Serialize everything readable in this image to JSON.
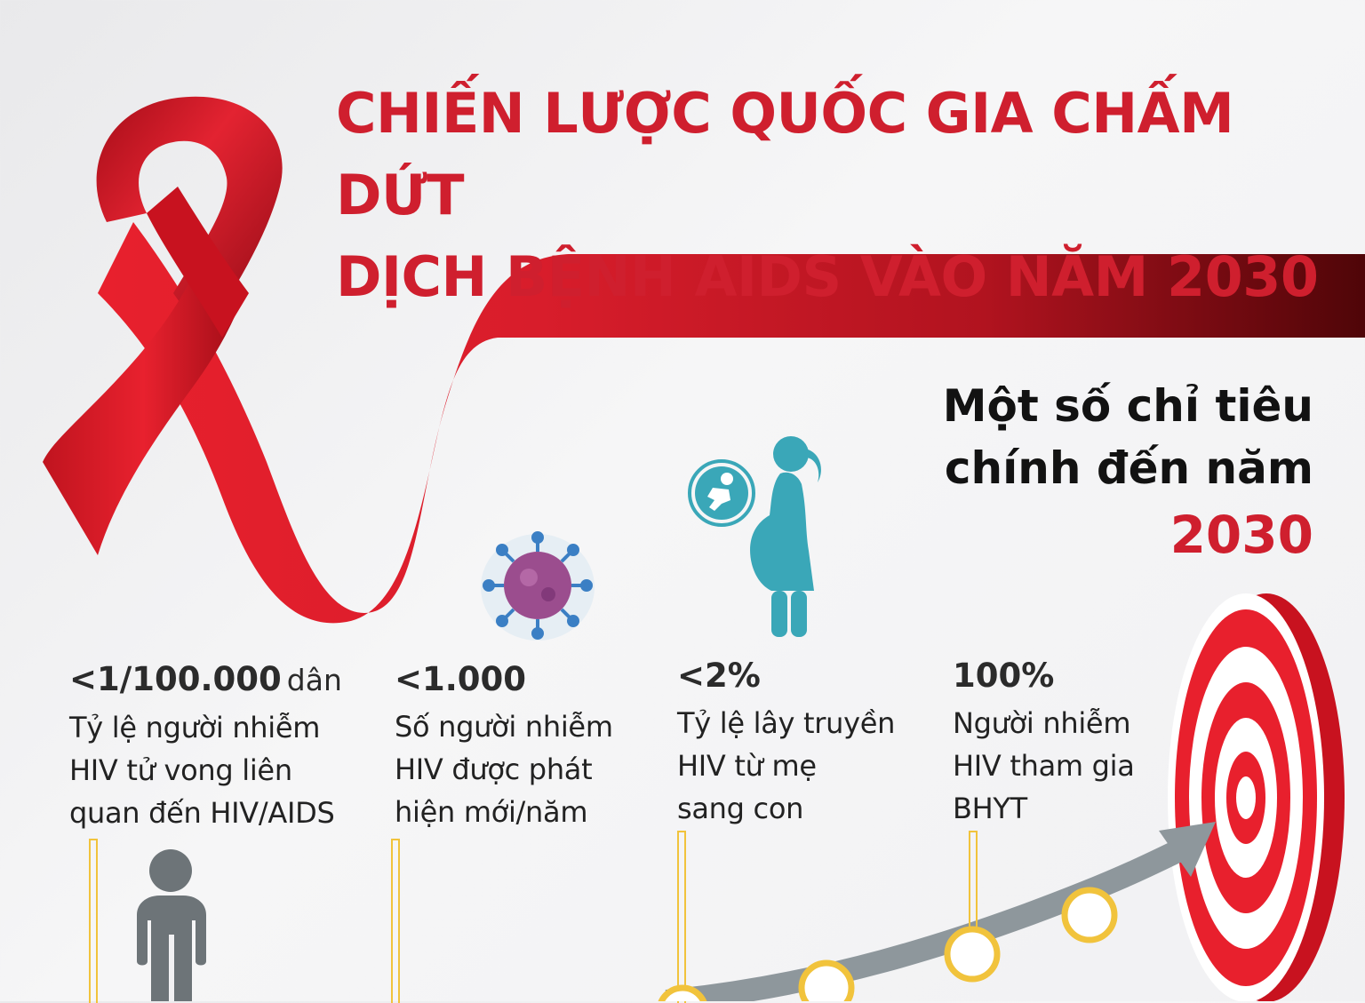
{
  "title": {
    "line1": "CHIẾN LƯỢC QUỐC GIA CHẤM DỨT",
    "line2": "DỊCH BỆNH AIDS VÀO NĂM 2030"
  },
  "subtitle": {
    "line1": "Một số chỉ tiêu",
    "line2": "chính đến năm",
    "year": "2030"
  },
  "stats": [
    {
      "value": "<1/100.000",
      "unit": "dân",
      "desc": [
        "Tỷ lệ người nhiễm",
        "HIV tử vong liên",
        "quan đến HIV/AIDS"
      ]
    },
    {
      "value": "<1.000",
      "unit": "",
      "desc": [
        "Số người nhiễm",
        "HIV được phát",
        "hiện mới/năm"
      ]
    },
    {
      "value": "<2%",
      "unit": "",
      "desc": [
        "Tỷ lệ lây truyền",
        "HIV từ mẹ",
        "sang con"
      ]
    },
    {
      "value": "100%",
      "unit": "",
      "desc": [
        "Người nhiễm",
        "HIV tham gia",
        "BHYT"
      ]
    }
  ],
  "icons": [
    "red-ribbon-icon",
    "person-icon",
    "virus-icon",
    "pregnant-woman-icon",
    "baby-icon",
    "target-icon",
    "arrow-icon"
  ],
  "colors": {
    "red": "#cf1f2e",
    "dark_red": "#6b0a12",
    "teal": "#3aa7b8",
    "gray": "#6d7478",
    "gold": "#f1c33c"
  }
}
